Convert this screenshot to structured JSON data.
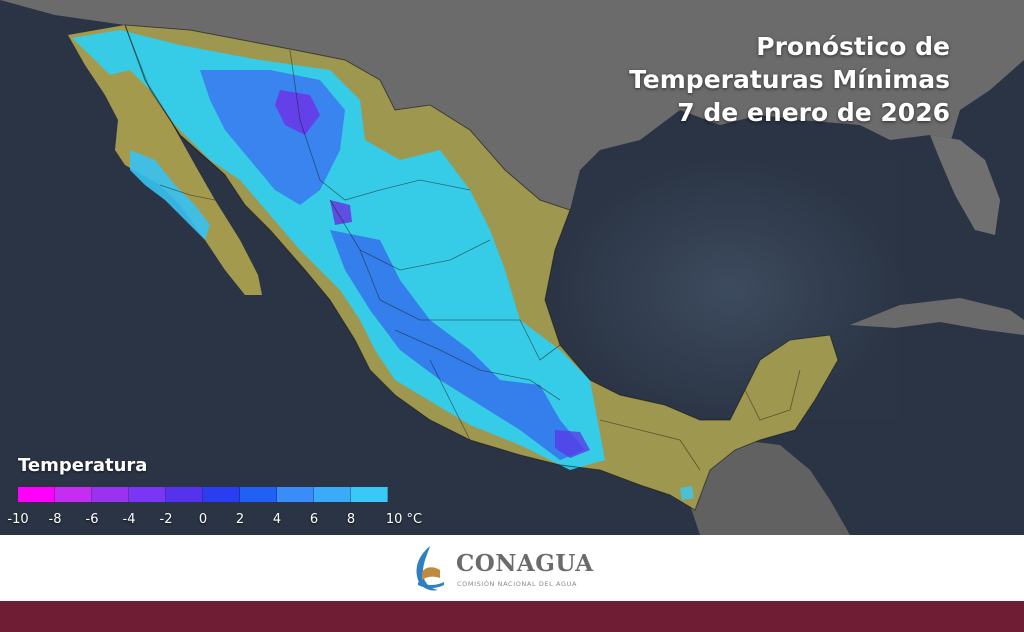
{
  "title": {
    "line1": "Pronóstico de",
    "line2": "Temperaturas Mínimas",
    "line3": "7 de enero de 2026"
  },
  "legend": {
    "title": "Temperatura",
    "colors": [
      "#ff00ff",
      "#c52df2",
      "#9a32f0",
      "#7a35f5",
      "#5533ee",
      "#2a3df0",
      "#2060f5",
      "#3a8cf8",
      "#3aaaf9",
      "#3ac8f6",
      "#2ee4f0"
    ],
    "ticks": [
      "-10",
      "-8",
      "-6",
      "-4",
      "-2",
      "0",
      "2",
      "4",
      "6",
      "8",
      "10 °C"
    ]
  },
  "footer": {
    "logo_name": "CONAGUA",
    "logo_subtitle": "COMISIÓN NACIONAL DEL AGUA"
  },
  "colors": {
    "ocean": "#2b3546",
    "land_other": "#6e6e6e",
    "land_mexico_warm": "#a49a4e",
    "cold_cyan": "#2ed4f5",
    "cold_blue": "#3a6ef0",
    "cold_purple": "#6a30e0",
    "brand_maroon": "#6f1d35"
  }
}
